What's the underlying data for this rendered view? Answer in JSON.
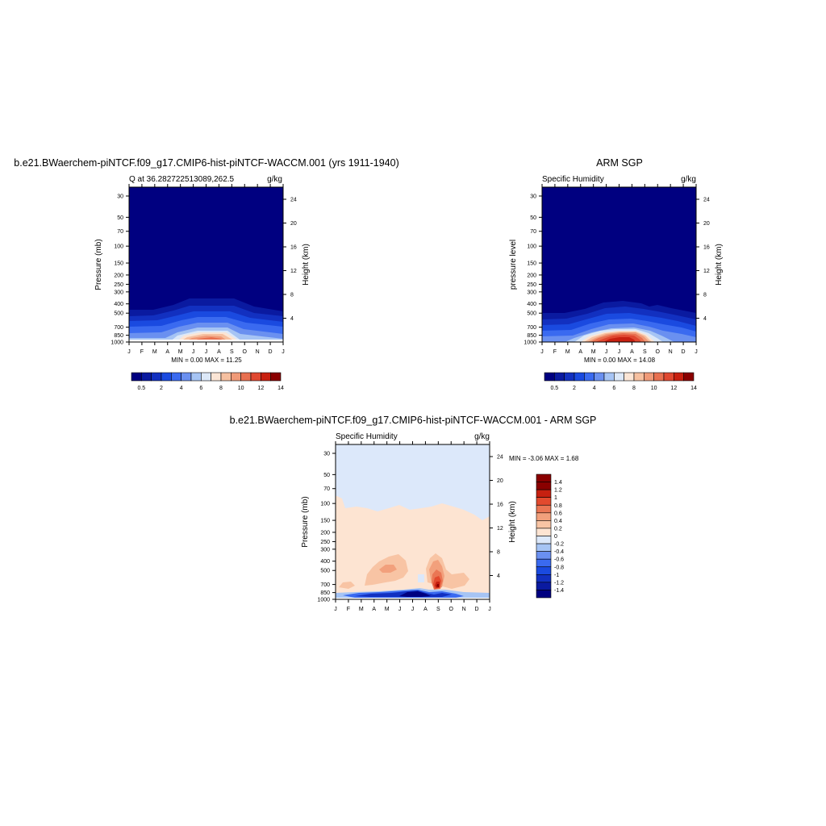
{
  "months": [
    "J",
    "F",
    "M",
    "A",
    "M",
    "J",
    "J",
    "A",
    "S",
    "O",
    "N",
    "D",
    "J"
  ],
  "pressure_ticks": [
    "30",
    "50",
    "70",
    "100",
    "150",
    "200",
    "250",
    "300",
    "400",
    "500",
    "700",
    "850",
    "1000"
  ],
  "height_ticks": [
    "24",
    "20",
    "16",
    "12",
    "8",
    "4"
  ],
  "chart_data": [
    {
      "type": "heatmap",
      "title": "b.e21.BWaerchem-piNTCF.f09_g17.CMIP6-hist-piNTCF-WACCM.001 (yrs 1911-1940)",
      "left_string": "Q at 36.282722513089,262.5",
      "right_string": "g/kg",
      "xlabel": "",
      "ylabel": "Pressure (mb)",
      "ylabel_right": "Height (km)",
      "x_categories": [
        "J",
        "F",
        "M",
        "A",
        "M",
        "J",
        "J",
        "A",
        "S",
        "O",
        "N",
        "D",
        "J"
      ],
      "y_levels_mb": [
        30,
        50,
        70,
        100,
        150,
        200,
        250,
        300,
        400,
        500,
        700,
        850,
        1000
      ],
      "height_km": [
        24,
        20,
        16,
        12,
        8,
        4
      ],
      "stats": "MIN =   0.00 MAX =  11.25",
      "min": 0.0,
      "max": 11.25,
      "peak_month": "Jul",
      "peak_pressure_mb": 850,
      "peak_value": 11.25,
      "colorbar_labels": [
        "0.5",
        "2",
        "4",
        "6",
        "8",
        "10",
        "12",
        "14"
      ],
      "colorbar_orientation": "horizontal"
    },
    {
      "type": "heatmap",
      "title": "ARM SGP",
      "left_string": "Specific Humidity",
      "right_string": "g/kg",
      "xlabel": "",
      "ylabel": "pressure level",
      "ylabel_right": "Height (km)",
      "x_categories": [
        "J",
        "F",
        "M",
        "A",
        "M",
        "J",
        "J",
        "A",
        "S",
        "O",
        "N",
        "D",
        "J"
      ],
      "y_levels_mb": [
        30,
        50,
        70,
        100,
        150,
        200,
        250,
        300,
        400,
        500,
        700,
        850,
        1000
      ],
      "height_km": [
        24,
        20,
        16,
        12,
        8,
        4
      ],
      "stats": "MIN =   0.00 MAX =  14.08",
      "min": 0.0,
      "max": 14.08,
      "peak_month": "Jul",
      "peak_pressure_mb": 1000,
      "peak_value": 14.08,
      "colorbar_labels": [
        "0.5",
        "2",
        "4",
        "6",
        "8",
        "10",
        "12",
        "14"
      ],
      "colorbar_orientation": "horizontal"
    },
    {
      "type": "heatmap",
      "title": "b.e21.BWaerchem-piNTCF.f09_g17.CMIP6-hist-piNTCF-WACCM.001 - ARM SGP",
      "left_string": "Specific Humidity",
      "right_string": "g/kg",
      "xlabel": "",
      "ylabel": "Pressure (mb)",
      "ylabel_right": "Height (km)",
      "x_categories": [
        "J",
        "F",
        "M",
        "A",
        "M",
        "J",
        "J",
        "A",
        "S",
        "O",
        "N",
        "D",
        "J"
      ],
      "y_levels_mb": [
        30,
        50,
        70,
        100,
        150,
        200,
        250,
        300,
        400,
        500,
        700,
        850,
        1000
      ],
      "height_km": [
        24,
        20,
        16,
        12,
        8,
        4
      ],
      "stats": "MIN =  -3.06 MAX =   1.68",
      "min": -3.06,
      "max": 1.68,
      "colorbar_labels": [
        "1.4",
        "1.2",
        "1",
        "0.8",
        "0.6",
        "0.4",
        "0.2",
        "0",
        "-0.2",
        "-0.4",
        "-0.6",
        "-0.8",
        "-1",
        "-1.2",
        "-1.4"
      ],
      "colorbar_orientation": "vertical"
    }
  ],
  "colors": {
    "abs_levels": [
      "#000080",
      "#0a1aa0",
      "#1230c0",
      "#1a4ae0",
      "#3a6af0",
      "#6a90f0",
      "#a6c4f4",
      "#dce8f8",
      "#fbe5d5",
      "#f6c0a0",
      "#f09a78",
      "#e87050",
      "#e04830",
      "#c82010",
      "#8a0000"
    ],
    "diff_levels": [
      "#000080",
      "#0a1aa0",
      "#1230c0",
      "#1a4ae0",
      "#3a6af0",
      "#6a90f0",
      "#a6c4f4",
      "#dce8fa",
      "#fde4d2",
      "#f8c4a4",
      "#f2a07c",
      "#ea7654",
      "#e24a2e",
      "#c62010",
      "#8a0000"
    ]
  }
}
